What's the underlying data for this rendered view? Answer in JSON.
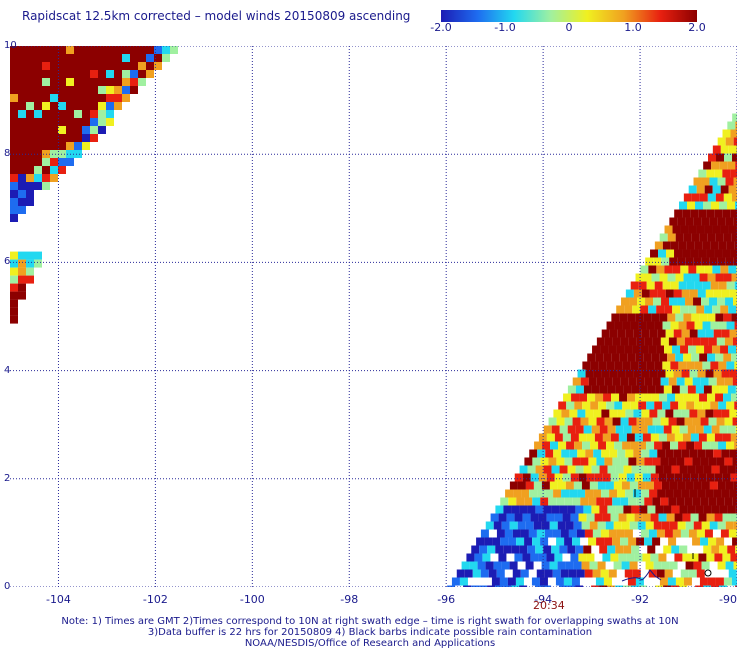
{
  "title": "Rapidscat 12.5km corrected – model winds 20150809 ascending",
  "colorbar": {
    "ticks": [
      {
        "label": "-2.0",
        "value": -2.0
      },
      {
        "label": "-1.0",
        "value": -1.0
      },
      {
        "label": "0",
        "value": 0
      },
      {
        "label": "1.0",
        "value": 1.0
      },
      {
        "label": "2.0",
        "value": 2.0
      }
    ],
    "range": [
      -2.0,
      2.0
    ],
    "colors": [
      "#1c1cb4",
      "#1e6cf0",
      "#22d8f0",
      "#a0f0a0",
      "#f0f020",
      "#f0a020",
      "#e82010",
      "#8c0000"
    ]
  },
  "chart_data": {
    "type": "heatmap",
    "xlim": [
      -105,
      -90
    ],
    "ylim": [
      0,
      10
    ],
    "x_ticks": [
      {
        "label": "-104",
        "value": -104
      },
      {
        "label": "-102",
        "value": -102
      },
      {
        "label": "-100",
        "value": -100
      },
      {
        "label": "-98",
        "value": -98
      },
      {
        "label": "-96",
        "value": -96
      },
      {
        "label": "-94",
        "value": -94
      },
      {
        "label": "-92",
        "value": -92
      },
      {
        "label": "-90",
        "value": -90
      }
    ],
    "y_ticks": [
      {
        "label": "0",
        "value": 0
      },
      {
        "label": "2",
        "value": 2
      },
      {
        "label": "4",
        "value": 4
      },
      {
        "label": "6",
        "value": 6
      },
      {
        "label": "8",
        "value": 8
      },
      {
        "label": "10",
        "value": 10
      }
    ],
    "grid": true,
    "swaths": [
      {
        "lon_left": -105,
        "lon_right": -101.6,
        "lat_top": 10,
        "lat_bottom": 6.8
      },
      {
        "lon_left": -105,
        "lon_right": -104.4,
        "lat_top": 6.2,
        "lat_bottom": 5.0
      },
      {
        "lon_left": -96,
        "lon_right": -90,
        "lat_top": 8.9,
        "lat_bottom": 0
      }
    ],
    "time_label": "20:34"
  },
  "notes": {
    "line1": "Note: 1) Times are GMT 2)Times correspond to 10N at right swath edge – time is right swath for overlapping swaths at 10N",
    "line2": "3)Data buffer is 22 hrs for 20150809 4) Black barbs indicate possible rain contamination",
    "line3": "NOAA/NESDIS/Office of Research and Applications"
  }
}
